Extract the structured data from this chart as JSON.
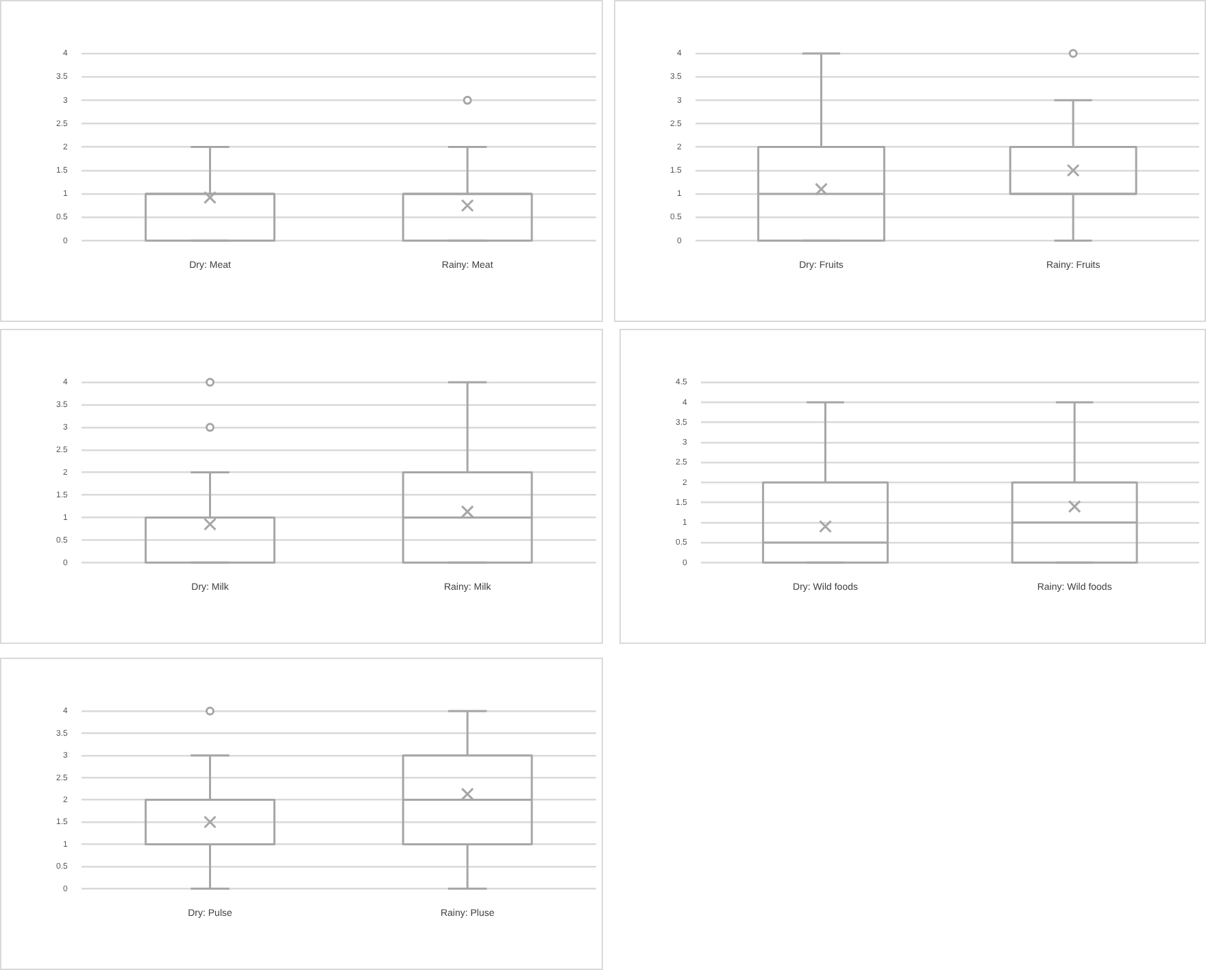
{
  "chart_data": [
    {
      "type": "box",
      "categories": [
        "Dry: Meat",
        "Rainy: Meat"
      ],
      "color": "#a6a6a6",
      "ylim": [
        0,
        4
      ],
      "yticks": [
        0,
        0.5,
        1,
        1.5,
        2,
        2.5,
        3,
        3.5,
        4
      ],
      "grid": "y",
      "legend": false,
      "boxes": [
        {
          "low": 0,
          "q1": 0,
          "median": 1,
          "q3": 1,
          "high": 2,
          "mean": 0.92
        },
        {
          "low": 0,
          "q1": 0,
          "median": 1,
          "q3": 1,
          "high": 2,
          "mean": 0.75,
          "outliers": [
            3
          ]
        }
      ]
    },
    {
      "type": "box",
      "categories": [
        "Dry: Fruits",
        "Rainy: Fruits"
      ],
      "color": "#a6a6a6",
      "ylim": [
        0,
        4
      ],
      "yticks": [
        0,
        0.5,
        1,
        1.5,
        2,
        2.5,
        3,
        3.5,
        4
      ],
      "grid": "y",
      "legend": false,
      "boxes": [
        {
          "low": 0,
          "q1": 0,
          "median": 1,
          "q3": 2,
          "high": 4,
          "mean": 1.1
        },
        {
          "low": 0,
          "q1": 1,
          "median": 1,
          "q3": 2,
          "high": 3,
          "mean": 1.5,
          "outliers": [
            4
          ]
        }
      ]
    },
    {
      "type": "box",
      "categories": [
        "Dry: Milk",
        "Rainy: Milk"
      ],
      "color": "#a6a6a6",
      "ylim": [
        0,
        4
      ],
      "yticks": [
        0,
        0.5,
        1,
        1.5,
        2,
        2.5,
        3,
        3.5,
        4
      ],
      "grid": "y",
      "legend": false,
      "boxes": [
        {
          "low": 0,
          "q1": 0,
          "median": 1,
          "q3": 1,
          "high": 2,
          "mean": 0.85,
          "outliers": [
            3,
            4
          ]
        },
        {
          "low": 0,
          "q1": 0,
          "median": 1,
          "q3": 2,
          "high": 4,
          "mean": 1.13
        }
      ]
    },
    {
      "type": "box",
      "categories": [
        "Dry: Wild foods",
        "Rainy: Wild foods"
      ],
      "color": "#a6a6a6",
      "ylim": [
        0,
        4.5
      ],
      "yticks": [
        0,
        0.5,
        1,
        1.5,
        2,
        2.5,
        3,
        3.5,
        4,
        4.5
      ],
      "grid": "y",
      "legend": false,
      "boxes": [
        {
          "low": 0,
          "q1": 0,
          "median": 0.5,
          "q3": 2,
          "high": 4,
          "mean": 0.9
        },
        {
          "low": 0,
          "q1": 0,
          "median": 1,
          "q3": 2,
          "high": 4,
          "mean": 1.4
        }
      ]
    },
    {
      "type": "box",
      "categories": [
        "Dry: Pulse",
        "Rainy: Pluse"
      ],
      "color": "#a6a6a6",
      "ylim": [
        0,
        4
      ],
      "yticks": [
        0,
        0.5,
        1,
        1.5,
        2,
        2.5,
        3,
        3.5,
        4
      ],
      "grid": "y",
      "legend": false,
      "boxes": [
        {
          "low": 0,
          "q1": 1,
          "median": 1,
          "q3": 2,
          "high": 3,
          "mean": 1.5,
          "outliers": [
            4
          ]
        },
        {
          "low": 0,
          "q1": 1,
          "median": 2,
          "q3": 3,
          "high": 4,
          "mean": 2.13
        }
      ]
    }
  ]
}
